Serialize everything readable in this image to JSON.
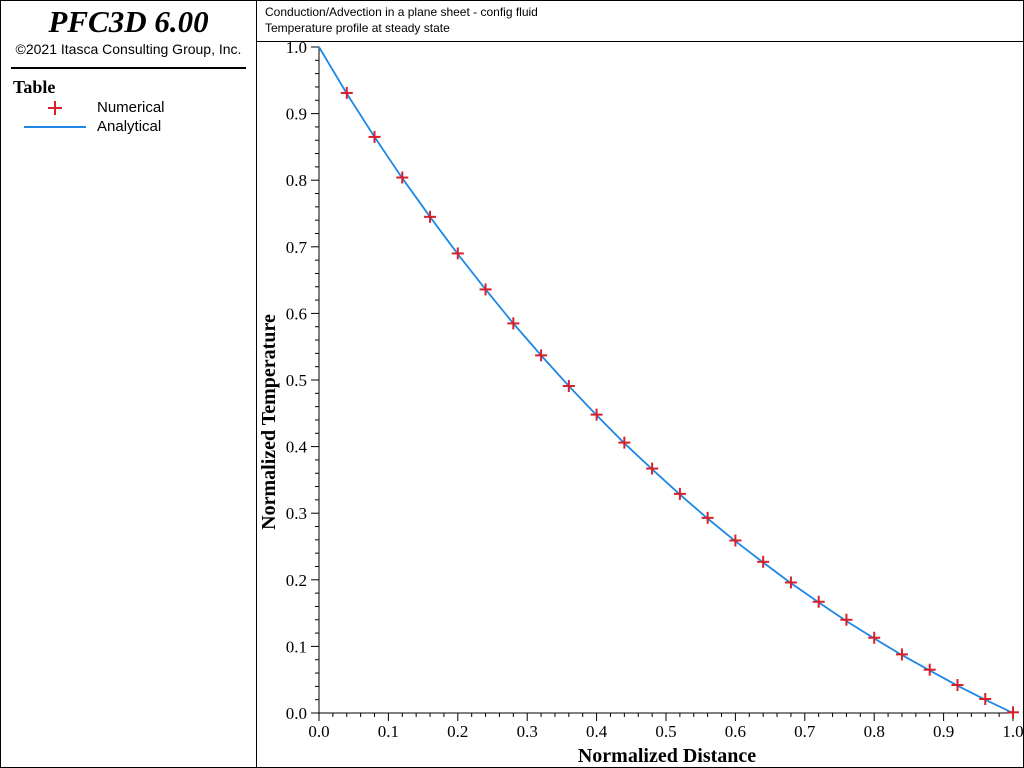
{
  "app": {
    "title": "PFC3D 6.00",
    "copyright": "©2021 Itasca Consulting Group, Inc."
  },
  "legend": {
    "heading": "Table",
    "items": [
      {
        "label": "Numerical",
        "marker": "plus",
        "color": "#d8202a"
      },
      {
        "label": "Analytical",
        "marker": "line",
        "color": "#1e88e5"
      }
    ]
  },
  "header": {
    "line1": "Conduction/Advection in a plane sheet - config fluid",
    "line2": "Temperature profile at steady state"
  },
  "chart_data": {
    "type": "line",
    "xlabel": "Normalized Distance",
    "ylabel": "Normalized Temperature",
    "xlim": [
      0.0,
      1.0
    ],
    "ylim": [
      0.0,
      1.0
    ],
    "xticks": [
      "0.0",
      "0.1",
      "0.2",
      "0.3",
      "0.4",
      "0.5",
      "0.6",
      "0.7",
      "0.8",
      "0.9",
      "1.0"
    ],
    "yticks": [
      "0.0",
      "0.1",
      "0.2",
      "0.3",
      "0.4",
      "0.5",
      "0.6",
      "0.7",
      "0.8",
      "0.9",
      "1.0"
    ],
    "grid": false,
    "legend_position": "left-panel",
    "series": [
      {
        "name": "Numerical",
        "style": "markers",
        "color": "#d8202a",
        "x": [
          0.04,
          0.08,
          0.12,
          0.16,
          0.2,
          0.24,
          0.28,
          0.32,
          0.36,
          0.4,
          0.44,
          0.48,
          0.52,
          0.56,
          0.6,
          0.64,
          0.68,
          0.72,
          0.76,
          0.8,
          0.84,
          0.88,
          0.92,
          0.96,
          1.0
        ],
        "y": [
          0.931,
          0.865,
          0.804,
          0.745,
          0.69,
          0.636,
          0.585,
          0.537,
          0.491,
          0.448,
          0.406,
          0.367,
          0.329,
          0.293,
          0.259,
          0.227,
          0.196,
          0.167,
          0.14,
          0.113,
          0.088,
          0.065,
          0.042,
          0.021,
          0.001
        ]
      },
      {
        "name": "Analytical",
        "style": "line",
        "color": "#1e88e5",
        "x": [
          0.0,
          0.04,
          0.08,
          0.12,
          0.16,
          0.2,
          0.24,
          0.28,
          0.32,
          0.36,
          0.4,
          0.44,
          0.48,
          0.52,
          0.56,
          0.6,
          0.64,
          0.68,
          0.72,
          0.76,
          0.8,
          0.84,
          0.88,
          0.92,
          0.96,
          1.0
        ],
        "y": [
          1.0,
          0.93,
          0.865,
          0.803,
          0.745,
          0.689,
          0.636,
          0.585,
          0.537,
          0.491,
          0.447,
          0.405,
          0.366,
          0.328,
          0.292,
          0.258,
          0.226,
          0.195,
          0.166,
          0.138,
          0.112,
          0.087,
          0.064,
          0.041,
          0.02,
          0.0
        ]
      }
    ]
  }
}
